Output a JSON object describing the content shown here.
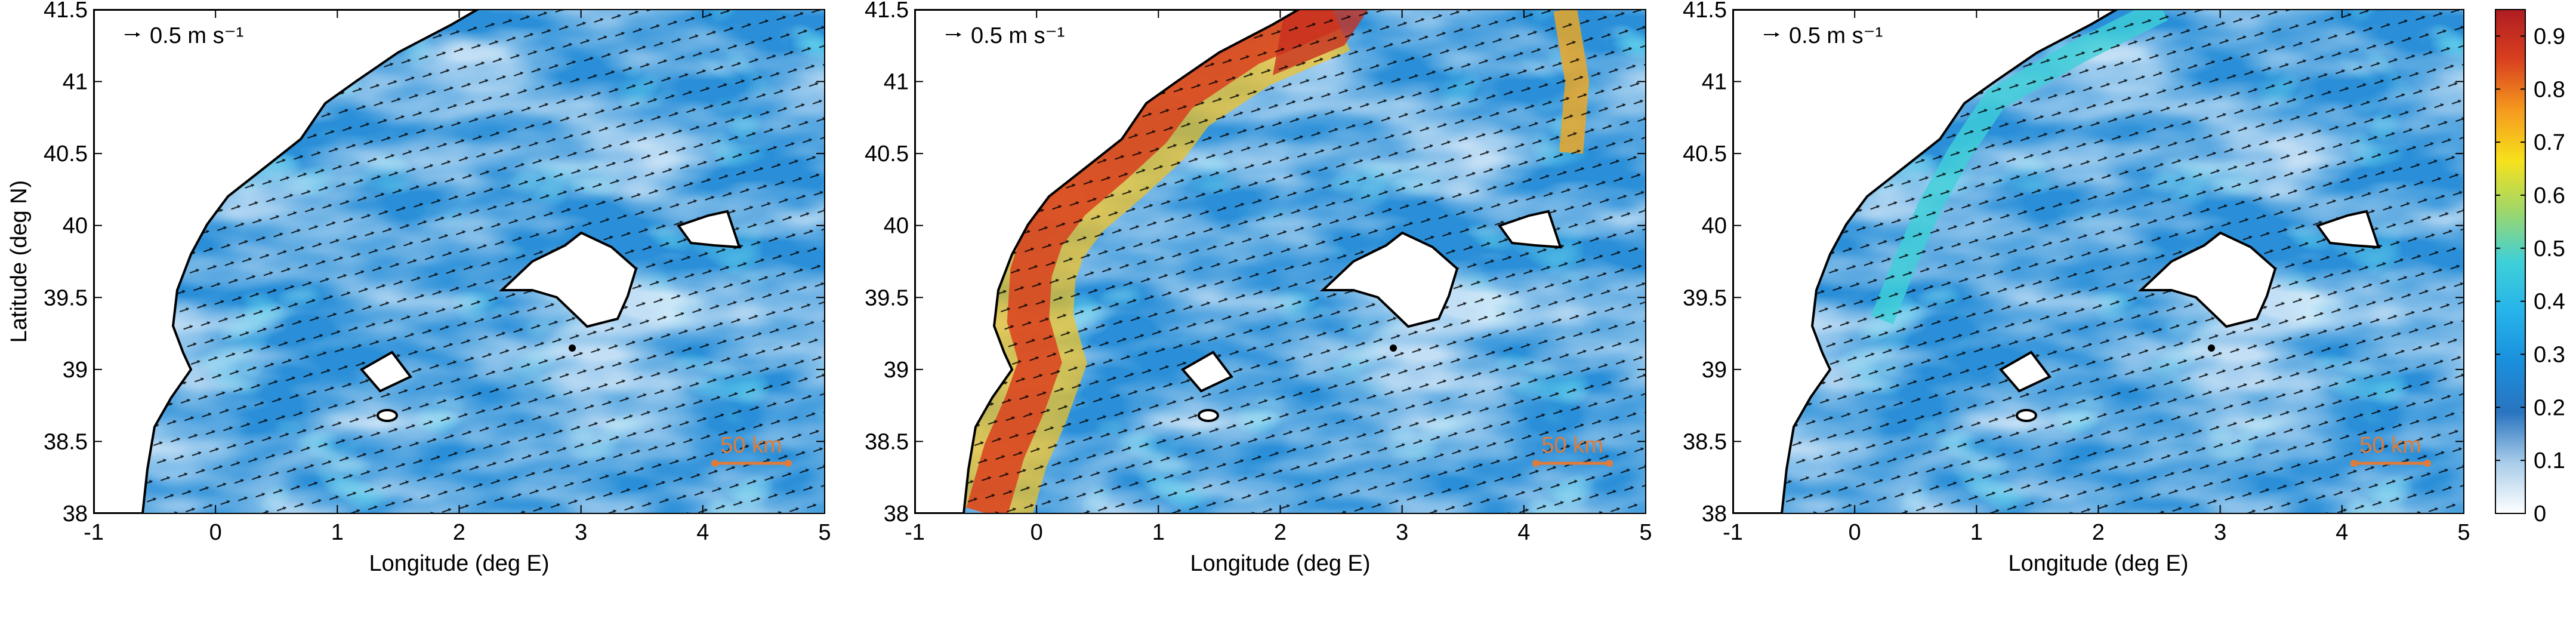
{
  "chart_data": [
    {
      "type": "quiver",
      "xlabel": "Longitude (deg E)",
      "ylabel": "Latitude (deg N)",
      "xlim": [
        -1,
        5
      ],
      "ylim": [
        38,
        41.5
      ],
      "xticks": [
        -1,
        0,
        1,
        2,
        3,
        4,
        5
      ],
      "yticks": [
        38,
        38.5,
        39,
        39.5,
        40,
        40.5,
        41,
        41.5
      ],
      "reference_label": "0.5 m s⁻¹",
      "scale_label": "50 km"
    },
    {
      "type": "quiver",
      "xlabel": "Longitude (deg E)",
      "xlim": [
        -1,
        5
      ],
      "ylim": [
        38,
        41.5
      ],
      "xticks": [
        -1,
        0,
        1,
        2,
        3,
        4,
        5
      ],
      "yticks": [
        38,
        38.5,
        39,
        39.5,
        40,
        40.5,
        41,
        41.5
      ],
      "reference_label": "0.5 m s⁻¹",
      "scale_label": "50 km"
    },
    {
      "type": "quiver",
      "xlabel": "Longitude (deg E)",
      "xlim": [
        -1,
        5
      ],
      "ylim": [
        38,
        41.5
      ],
      "xticks": [
        -1,
        0,
        1,
        2,
        3,
        4,
        5
      ],
      "yticks": [
        38,
        38.5,
        39,
        39.5,
        40,
        40.5,
        41,
        41.5
      ],
      "reference_label": "0.5 m s⁻¹",
      "scale_label": "50 km",
      "colorbar": {
        "lim": [
          0,
          0.95
        ],
        "ticks": [
          0,
          0.1,
          0.2,
          0.3,
          0.4,
          0.5,
          0.6,
          0.7,
          0.8,
          0.9
        ],
        "colormap": [
          "#ffffff",
          "#a9cdea",
          "#2a74c0",
          "#1a8fdc",
          "#26b3ea",
          "#3fd0d8",
          "#9ed76a",
          "#f7e11c",
          "#f59a1e",
          "#d9401f",
          "#b01d22"
        ]
      }
    }
  ]
}
